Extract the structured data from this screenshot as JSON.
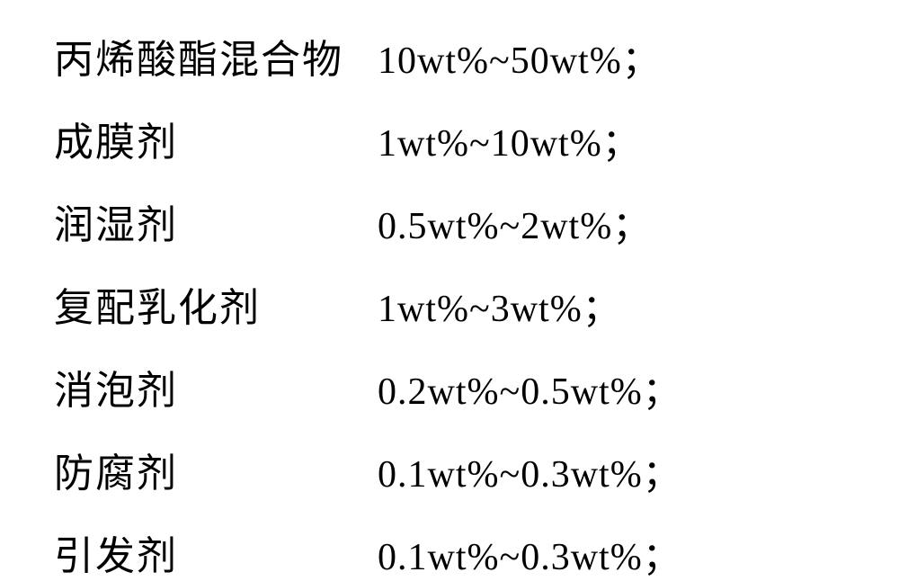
{
  "composition": {
    "rows": [
      {
        "name": "丙烯酸酯混合物",
        "value": "10wt%~50wt%；"
      },
      {
        "name": "成膜剂",
        "value": "1wt%~10wt%；"
      },
      {
        "name": "润湿剂",
        "value": "0.5wt%~2wt%；"
      },
      {
        "name": "复配乳化剂",
        "value": "1wt%~3wt%；"
      },
      {
        "name": "消泡剂",
        "value": "0.2wt%~0.5wt%；"
      },
      {
        "name": "防腐剂",
        "value": "0.1wt%~0.3wt%；"
      },
      {
        "name": "引发剂",
        "value": "0.1wt%~0.3wt%；"
      }
    ],
    "styling": {
      "background_color": "#ffffff",
      "text_color": "#000000",
      "name_fontsize": 44,
      "value_fontsize": 42,
      "name_column_width": 360,
      "row_gap": 28,
      "font_family_name": "KaiTi",
      "font_family_value": "Times New Roman"
    }
  }
}
